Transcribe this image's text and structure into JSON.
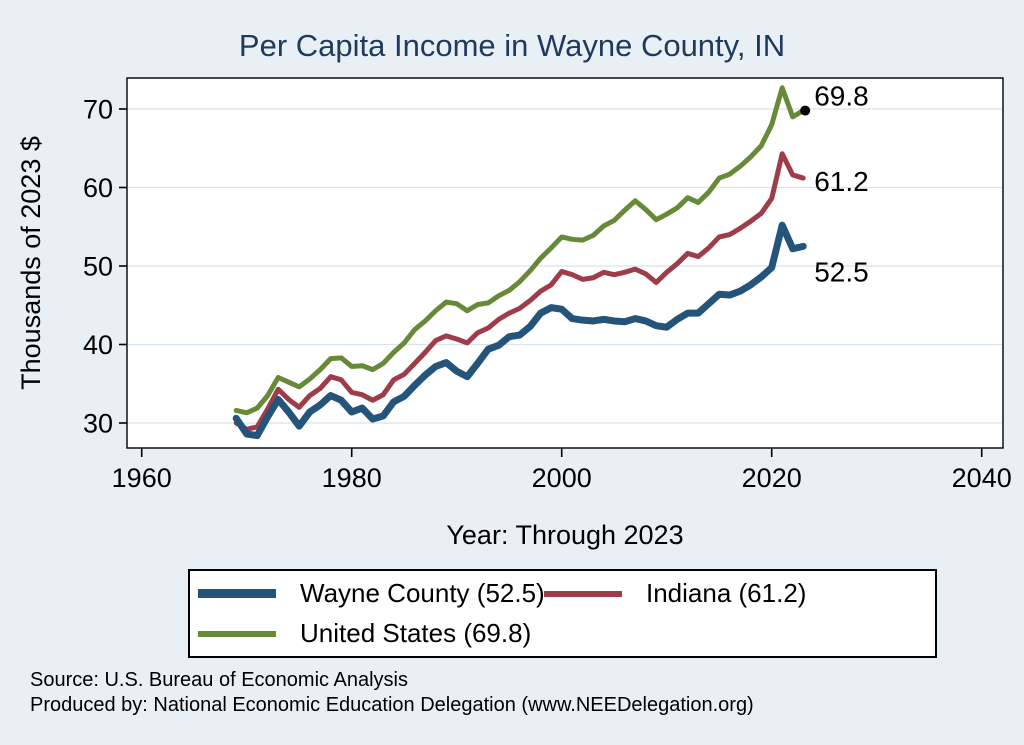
{
  "title": "Per Capita Income in Wayne County, IN",
  "colors": {
    "background": "#e9f0f5",
    "plot_background": "#ffffff",
    "gridline": "#d8e4ed",
    "axis": "#000000",
    "title_text": "#1e3a5e",
    "wayne_county_line": "#25547b",
    "indiana_line": "#9e3c49",
    "united_states_line": "#678a38"
  },
  "chart_data": {
    "type": "line",
    "title": "Per Capita Income in Wayne County, IN",
    "xlabel": "Year: Through 2023",
    "ylabel": "Thousands of 2023 $",
    "xlim": [
      1960,
      2040
    ],
    "ylim": [
      30,
      70
    ],
    "xticks": [
      1960,
      1980,
      2000,
      2020,
      2040
    ],
    "yticks": [
      30,
      40,
      50,
      60,
      70
    ],
    "grid": "horizontal",
    "legend_position": "bottom",
    "x": [
      1969,
      1970,
      1971,
      1972,
      1973,
      1974,
      1975,
      1976,
      1977,
      1978,
      1979,
      1980,
      1981,
      1982,
      1983,
      1984,
      1985,
      1986,
      1987,
      1988,
      1989,
      1990,
      1991,
      1992,
      1993,
      1994,
      1995,
      1996,
      1997,
      1998,
      1999,
      2000,
      2001,
      2002,
      2003,
      2004,
      2005,
      2006,
      2007,
      2008,
      2009,
      2010,
      2011,
      2012,
      2013,
      2014,
      2015,
      2016,
      2017,
      2018,
      2019,
      2020,
      2021,
      2022,
      2023
    ],
    "series": [
      {
        "name": "Wayne County",
        "legend_label": "Wayne County (52.5)",
        "end_label": "52.5",
        "color": "#25547b",
        "stroke_width": 7,
        "legend_swatch_height": 9,
        "end_dot": false,
        "label_dy": 35,
        "values": [
          30.6,
          28.6,
          28.4,
          30.8,
          33.0,
          31.4,
          29.6,
          31.4,
          32.3,
          33.5,
          32.9,
          31.4,
          31.9,
          30.5,
          30.9,
          32.7,
          33.4,
          34.8,
          36.1,
          37.2,
          37.7,
          36.6,
          35.9,
          37.6,
          39.4,
          39.9,
          41.0,
          41.2,
          42.3,
          44.0,
          44.7,
          44.5,
          43.3,
          43.1,
          43.0,
          43.2,
          43.0,
          42.9,
          43.3,
          43.0,
          42.4,
          42.2,
          43.2,
          44.0,
          44.0,
          45.2,
          46.4,
          46.3,
          46.8,
          47.6,
          48.6,
          49.8,
          55.2,
          52.2,
          52.5
        ]
      },
      {
        "name": "Indiana",
        "legend_label": "Indiana (61.2)",
        "end_label": "61.2",
        "color": "#9e3c49",
        "stroke_width": 5,
        "legend_swatch_height": 6,
        "end_dot": false,
        "label_dy": 13,
        "values": [
          30.0,
          29.2,
          29.5,
          31.8,
          34.3,
          33.0,
          32.0,
          33.5,
          34.4,
          35.9,
          35.5,
          33.9,
          33.6,
          32.9,
          33.6,
          35.5,
          36.2,
          37.6,
          39.0,
          40.5,
          41.1,
          40.7,
          40.2,
          41.5,
          42.1,
          43.2,
          44.0,
          44.6,
          45.6,
          46.8,
          47.6,
          49.3,
          48.9,
          48.3,
          48.5,
          49.2,
          48.9,
          49.2,
          49.6,
          49.0,
          47.9,
          49.2,
          50.3,
          51.6,
          51.2,
          52.3,
          53.7,
          54.0,
          54.8,
          55.7,
          56.7,
          58.6,
          64.3,
          61.6,
          61.2
        ]
      },
      {
        "name": "United States",
        "legend_label": "United States (69.8)",
        "end_label": "69.8",
        "color": "#678a38",
        "stroke_width": 5,
        "legend_swatch_height": 6,
        "end_dot": true,
        "label_dy": -5,
        "values": [
          31.6,
          31.3,
          31.9,
          33.5,
          35.8,
          35.2,
          34.6,
          35.6,
          36.8,
          38.2,
          38.3,
          37.2,
          37.3,
          36.8,
          37.6,
          39.0,
          40.2,
          41.9,
          43.0,
          44.3,
          45.4,
          45.2,
          44.3,
          45.1,
          45.3,
          46.2,
          46.9,
          48.0,
          49.4,
          51.0,
          52.3,
          53.7,
          53.4,
          53.3,
          53.9,
          55.1,
          55.8,
          57.1,
          58.3,
          57.2,
          55.9,
          56.6,
          57.4,
          58.7,
          58.1,
          59.4,
          61.2,
          61.7,
          62.7,
          63.9,
          65.3,
          68.0,
          72.7,
          69.0,
          69.8
        ]
      }
    ]
  },
  "legend": {
    "items": [
      {
        "label": "Wayne County (52.5)"
      },
      {
        "label": "Indiana (61.2)"
      },
      {
        "label": "United States (69.8)"
      }
    ]
  },
  "footer": {
    "line1": "Source: U.S. Bureau of Economic Analysis",
    "line2": "Produced by: National Economic Education Delegation (www.NEEDelegation.org)"
  }
}
